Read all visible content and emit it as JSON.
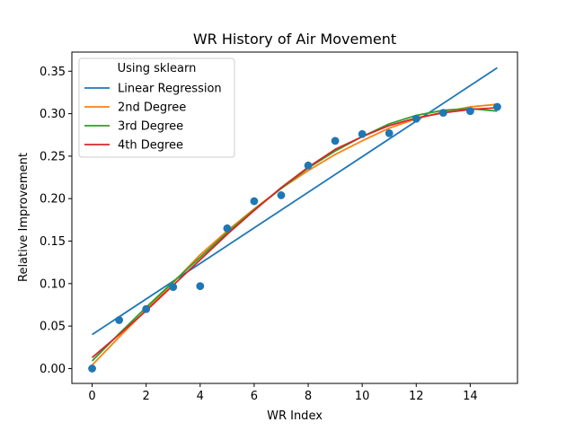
{
  "chart_data": {
    "type": "scatter",
    "title": "WR History of Air Movement",
    "xlabel": "WR Index",
    "ylabel": "Relative Improvement",
    "xlim": [
      -0.75,
      15.75
    ],
    "ylim": [
      -0.0175,
      0.3725
    ],
    "xticks": [
      0,
      2,
      4,
      6,
      8,
      10,
      12,
      14
    ],
    "xtick_labels": [
      "0",
      "2",
      "4",
      "6",
      "8",
      "10",
      "12",
      "14"
    ],
    "yticks": [
      0.0,
      0.05,
      0.1,
      0.15,
      0.2,
      0.25,
      0.3,
      0.35
    ],
    "ytick_labels": [
      "0.00",
      "0.05",
      "0.10",
      "0.15",
      "0.20",
      "0.25",
      "0.30",
      "0.35"
    ],
    "grid": false,
    "legend": {
      "title": "Using sklearn",
      "placement": "top-left",
      "entries": [
        "Linear Regression",
        "2nd Degree",
        "3rd Degree",
        "4th Degree"
      ]
    },
    "points": {
      "color": "#1f77b4",
      "x": [
        0,
        1,
        2,
        3,
        4,
        5,
        6,
        7,
        8,
        9,
        10,
        11,
        12,
        13,
        14,
        15
      ],
      "y": [
        0.0,
        0.057,
        0.07,
        0.096,
        0.097,
        0.165,
        0.197,
        0.204,
        0.239,
        0.268,
        0.276,
        0.277,
        0.294,
        0.301,
        0.303,
        0.308
      ]
    },
    "series": [
      {
        "name": "Linear Regression",
        "color": "#1f77b4",
        "x": [
          0,
          15
        ],
        "y": [
          0.04,
          0.354
        ]
      },
      {
        "name": "2nd Degree",
        "color": "#ff7f0e",
        "x": [
          0,
          1,
          2,
          3,
          4,
          5,
          6,
          7,
          8,
          9,
          10,
          11,
          12,
          13,
          14,
          15
        ],
        "y": [
          0.004,
          0.037,
          0.069,
          0.101,
          0.134,
          0.162,
          0.188,
          0.212,
          0.233,
          0.252,
          0.268,
          0.283,
          0.294,
          0.302,
          0.308,
          0.311
        ]
      },
      {
        "name": "3rd Degree",
        "color": "#2ca02c",
        "x": [
          0,
          1,
          2,
          3,
          4,
          5,
          6,
          7,
          8,
          9,
          10,
          11,
          12,
          13,
          14,
          15
        ],
        "y": [
          0.009,
          0.041,
          0.072,
          0.102,
          0.131,
          0.16,
          0.187,
          0.212,
          0.236,
          0.256,
          0.273,
          0.288,
          0.298,
          0.304,
          0.306,
          0.303
        ]
      },
      {
        "name": "4th Degree",
        "color": "#d62728",
        "x": [
          0,
          1,
          2,
          3,
          4,
          5,
          6,
          7,
          8,
          9,
          10,
          11,
          12,
          13,
          14,
          15
        ],
        "y": [
          0.013,
          0.04,
          0.068,
          0.098,
          0.128,
          0.158,
          0.186,
          0.213,
          0.237,
          0.258,
          0.273,
          0.286,
          0.295,
          0.301,
          0.305,
          0.307
        ]
      }
    ]
  }
}
